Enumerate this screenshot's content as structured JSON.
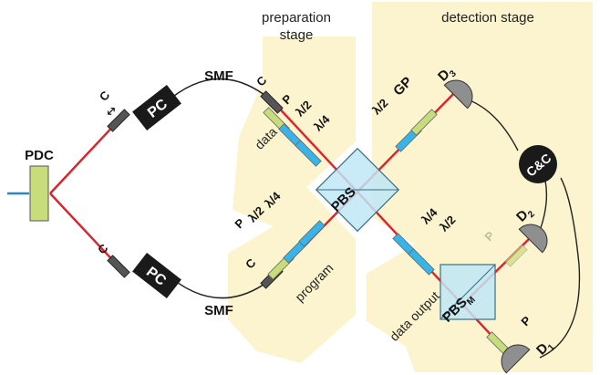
{
  "stages": {
    "preparation_line1": "preparation",
    "preparation_line2": "stage",
    "detection": "detection stage"
  },
  "labels": {
    "pdc": "PDC",
    "pc_top": "PC",
    "pc_bottom": "PC",
    "smf_top": "SMF",
    "smf_bottom": "SMF",
    "c_top_left": "C",
    "c_bottom_left": "C",
    "c_data": "C",
    "c_program": "C",
    "p_data": "P",
    "hwp_data": "λ/2",
    "qwp_data": "λ/4",
    "p_program": "P",
    "hwp_program": "λ/2",
    "qwp_program": "λ/4",
    "data": "data",
    "program": "program",
    "pbs": "PBS",
    "pbs_m": "PBS",
    "pbs_m_sub": "M",
    "gp_hwp": "λ/2",
    "gp": "GP",
    "d3": "D",
    "d3_sub": "3",
    "d2": "D",
    "d2_sub": "2",
    "d1": "D",
    "d1_sub": "1",
    "p_d2": "P",
    "p_d1": "P",
    "out_qwp": "λ/4",
    "out_hwp": "λ/2",
    "data_output": "data output",
    "cc": "C&C"
  },
  "colors": {
    "beam": "#e0202a",
    "stage_fill": "#fbf4cf",
    "polarizer": "#c7dc7a",
    "waveplate": "#39b4e8",
    "cube": "#bfe6f6",
    "dark": "#1a1a1a"
  }
}
